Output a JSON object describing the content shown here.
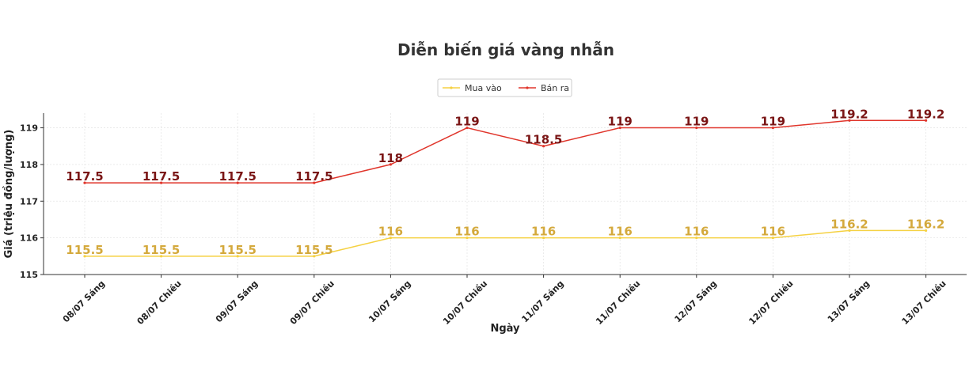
{
  "chart_data": {
    "type": "line",
    "title": "Diễn biến giá vàng nhẫn",
    "xlabel": "Ngày",
    "ylabel": "Giá (triệu đồng/lượng)",
    "categories": [
      "08/07 Sáng",
      "08/07 Chiều",
      "09/07 Sáng",
      "09/07 Chiều",
      "10/07 Sáng",
      "10/07 Chiều",
      "11/07 Sáng",
      "11/07 Chiều",
      "12/07 Sáng",
      "12/07 Chiều",
      "13/07 Sáng",
      "13/07 Chiều"
    ],
    "ylim": [
      115,
      119.4
    ],
    "yticks": [
      "115",
      "116",
      "117",
      "118",
      "119"
    ],
    "grid": true,
    "legend_position": "top-center",
    "series": [
      {
        "name": "Mua vào",
        "color": "#f5d142",
        "label_color": "#d4a93c",
        "values": [
          115.5,
          115.5,
          115.5,
          115.5,
          116,
          116,
          116,
          116,
          116,
          116,
          116.2,
          116.2
        ],
        "labels": [
          "115.5",
          "115.5",
          "115.5",
          "115.5",
          "116",
          "116",
          "116",
          "116",
          "116",
          "116",
          "116.2",
          "116.2"
        ]
      },
      {
        "name": "Bán ra",
        "color": "#e0352b",
        "label_color": "#7a1515",
        "values": [
          117.5,
          117.5,
          117.5,
          117.5,
          118,
          119,
          118.5,
          119,
          119,
          119,
          119.2,
          119.2
        ],
        "labels": [
          "117.5",
          "117.5",
          "117.5",
          "117.5",
          "118",
          "119",
          "118.5",
          "119",
          "119",
          "119",
          "119.2",
          "119.2"
        ]
      }
    ]
  }
}
